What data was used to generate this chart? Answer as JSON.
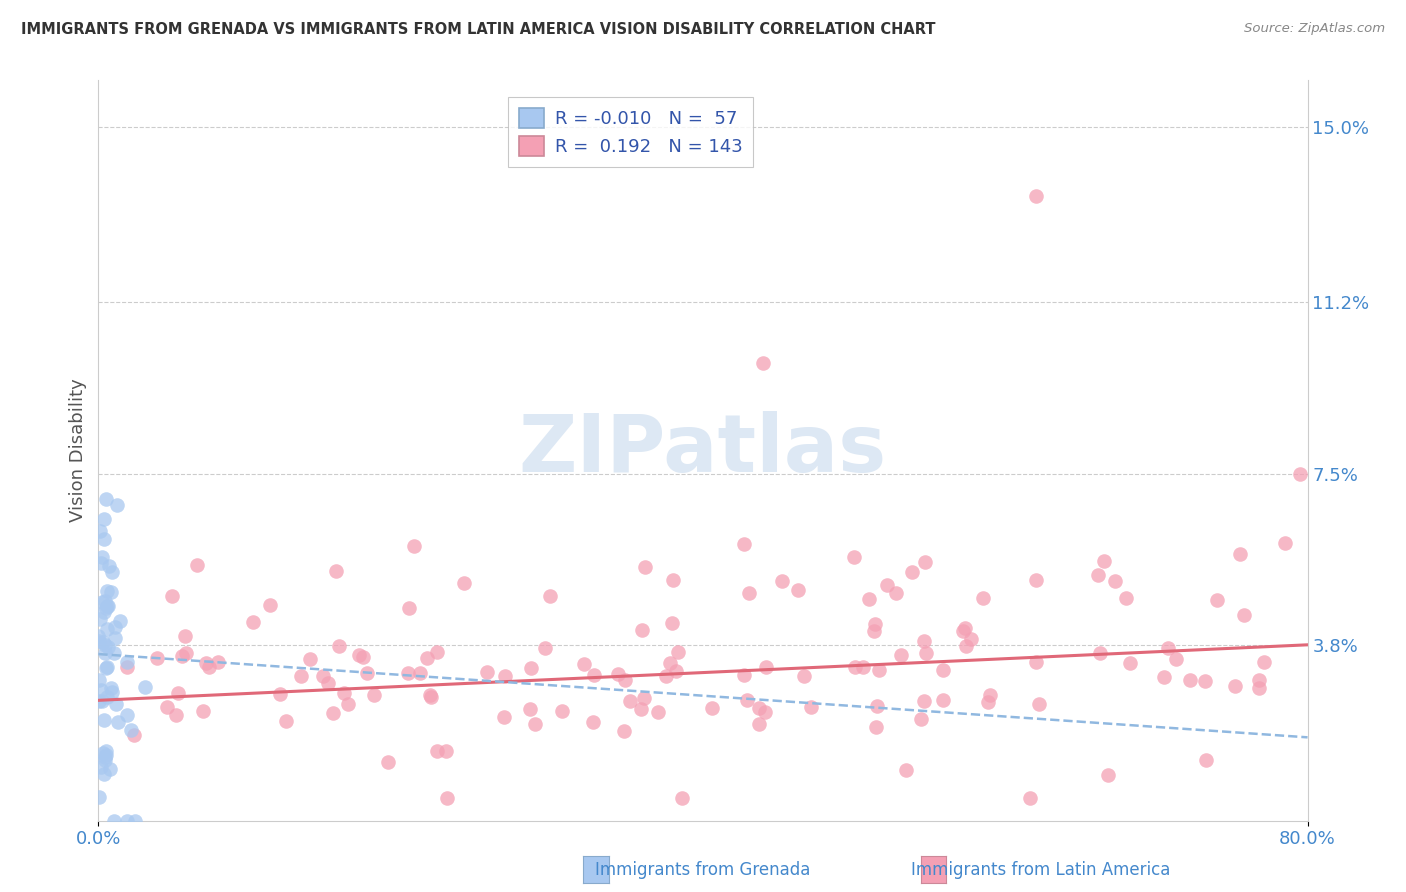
{
  "title": "IMMIGRANTS FROM GRENADA VS IMMIGRANTS FROM LATIN AMERICA VISION DISABILITY CORRELATION CHART",
  "source": "Source: ZipAtlas.com",
  "xlabel_grenada": "Immigrants from Grenada",
  "xlabel_latin": "Immigrants from Latin America",
  "ylabel": "Vision Disability",
  "xmin": 0.0,
  "xmax": 0.8,
  "ymin": 0.0,
  "ymax": 0.16,
  "ytick_vals": [
    0.0,
    0.038,
    0.075,
    0.112,
    0.15
  ],
  "ytick_labels": [
    "",
    "3.8%",
    "7.5%",
    "11.2%",
    "15.0%"
  ],
  "R_grenada": -0.01,
  "N_grenada": 57,
  "R_latin": 0.192,
  "N_latin": 143,
  "color_grenada": "#a8c8f0",
  "color_latin": "#f4a0b4",
  "line_color_grenada": "#90b8e0",
  "line_color_latin": "#e06878",
  "tick_color": "#4488cc",
  "background_color": "#ffffff",
  "grid_color": "#cccccc",
  "title_color": "#333333",
  "source_color": "#888888",
  "ylabel_color": "#555555",
  "watermark_color": "#dde8f4",
  "legend_label_color": "#3355aa"
}
